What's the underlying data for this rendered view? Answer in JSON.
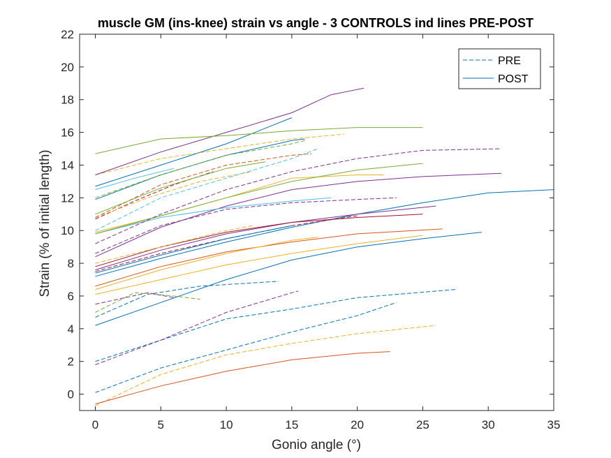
{
  "chart_data": {
    "type": "line",
    "title": "muscle GM (ins-knee) strain vs angle - 3 CONTROLS ind lines PRE-POST",
    "xlabel": "Gonio angle (°)",
    "ylabel": "Strain (% of initial length)",
    "xlim": [
      -1.2,
      35
    ],
    "ylim": [
      -1,
      22
    ],
    "xticks": [
      "0",
      "5",
      "10",
      "15",
      "20",
      "25",
      "30",
      "35"
    ],
    "yticks": [
      "0",
      "2",
      "4",
      "6",
      "8",
      "10",
      "12",
      "14",
      "16",
      "18",
      "20",
      "22"
    ],
    "grid": false,
    "legend": {
      "placement": "top-right",
      "entries": [
        {
          "label": "PRE",
          "style": "dashed",
          "color": "#0072BD"
        },
        {
          "label": "POST",
          "style": "solid",
          "color": "#0072BD"
        }
      ]
    },
    "series": [
      {
        "style": "dashed",
        "color": "#0072BD",
        "points": [
          [
            0,
            0.1
          ],
          [
            5,
            1.6
          ],
          [
            10,
            2.7
          ],
          [
            15,
            3.8
          ],
          [
            20,
            4.8
          ],
          [
            23,
            5.6
          ]
        ]
      },
      {
        "style": "dashed",
        "color": "#EDB120",
        "points": [
          [
            0,
            -0.7
          ],
          [
            5,
            1.2
          ],
          [
            10,
            2.4
          ],
          [
            15,
            3.1
          ],
          [
            20,
            3.7
          ],
          [
            26,
            4.2
          ]
        ]
      },
      {
        "style": "solid",
        "color": "#D95319",
        "points": [
          [
            0,
            -0.6
          ],
          [
            5,
            0.5
          ],
          [
            10,
            1.4
          ],
          [
            15,
            2.1
          ],
          [
            20,
            2.5
          ],
          [
            22.5,
            2.6
          ]
        ]
      },
      {
        "style": "dashed",
        "color": "#0072BD",
        "points": [
          [
            0,
            2.0
          ],
          [
            5,
            3.3
          ],
          [
            10,
            4.6
          ],
          [
            15,
            5.2
          ],
          [
            20,
            5.9
          ],
          [
            27.5,
            6.4
          ]
        ]
      },
      {
        "style": "dashed",
        "color": "#7E2F8E",
        "points": [
          [
            0,
            1.8
          ],
          [
            5,
            3.3
          ],
          [
            10,
            5.0
          ],
          [
            15,
            6.2
          ],
          [
            15.5,
            6.3
          ]
        ]
      },
      {
        "style": "solid",
        "color": "#0072BD",
        "points": [
          [
            0,
            4.2
          ],
          [
            5,
            5.6
          ],
          [
            10,
            7.0
          ],
          [
            15,
            8.2
          ],
          [
            20,
            9.0
          ],
          [
            25,
            9.5
          ],
          [
            29.5,
            9.9
          ]
        ]
      },
      {
        "style": "dashed",
        "color": "#0072BD",
        "points": [
          [
            0,
            4.7
          ],
          [
            4,
            6.1
          ],
          [
            8,
            6.6
          ],
          [
            12,
            6.8
          ],
          [
            14,
            6.9
          ]
        ]
      },
      {
        "style": "dashed",
        "color": "#77AC30",
        "points": [
          [
            0,
            5.0
          ],
          [
            3,
            6.2
          ],
          [
            6,
            6.0
          ],
          [
            8,
            5.8
          ]
        ]
      },
      {
        "style": "dashed",
        "color": "#7E2F8E",
        "points": [
          [
            0,
            5.5
          ],
          [
            4,
            6.2
          ],
          [
            6,
            5.9
          ]
        ]
      },
      {
        "style": "solid",
        "color": "#EDB120",
        "points": [
          [
            0,
            6.1
          ],
          [
            5,
            7.0
          ],
          [
            10,
            7.9
          ],
          [
            15,
            8.6
          ],
          [
            20,
            9.2
          ],
          [
            25,
            9.7
          ]
        ]
      },
      {
        "style": "solid",
        "color": "#D95319",
        "points": [
          [
            0,
            6.6
          ],
          [
            5,
            7.8
          ],
          [
            10,
            8.7
          ],
          [
            15,
            9.3
          ],
          [
            20,
            9.8
          ],
          [
            26.5,
            10.1
          ]
        ]
      },
      {
        "style": "solid",
        "color": "#EDB120",
        "points": [
          [
            0,
            6.4
          ],
          [
            5,
            7.6
          ],
          [
            10,
            8.6
          ],
          [
            15,
            9.4
          ],
          [
            17,
            9.6
          ]
        ]
      },
      {
        "style": "solid",
        "color": "#0072BD",
        "points": [
          [
            0,
            7.2
          ],
          [
            5,
            8.3
          ],
          [
            10,
            9.3
          ],
          [
            15,
            10.2
          ],
          [
            20,
            11.0
          ],
          [
            25,
            11.7
          ],
          [
            30,
            12.3
          ],
          [
            35,
            12.5
          ]
        ]
      },
      {
        "style": "solid",
        "color": "#7E2F8E",
        "points": [
          [
            0,
            7.6
          ],
          [
            5,
            8.8
          ],
          [
            10,
            9.8
          ],
          [
            15,
            10.5
          ],
          [
            20,
            11.0
          ],
          [
            26,
            11.5
          ]
        ]
      },
      {
        "style": "solid",
        "color": "#A2142F",
        "points": [
          [
            0,
            7.8
          ],
          [
            5,
            9.0
          ],
          [
            10,
            9.9
          ],
          [
            15,
            10.5
          ],
          [
            20,
            10.8
          ],
          [
            25,
            11.0
          ]
        ]
      },
      {
        "style": "dashed",
        "color": "#A2142F",
        "points": [
          [
            0,
            7.5
          ],
          [
            5,
            8.6
          ],
          [
            10,
            9.5
          ],
          [
            15,
            10.3
          ],
          [
            20,
            10.9
          ]
        ]
      },
      {
        "style": "solid",
        "color": "#0072BD",
        "points": [
          [
            0,
            7.4
          ],
          [
            5,
            8.5
          ],
          [
            10,
            9.5
          ],
          [
            15,
            10.3
          ]
        ]
      },
      {
        "style": "solid",
        "color": "#7E2F8E",
        "points": [
          [
            0,
            8.4
          ],
          [
            5,
            10.2
          ],
          [
            10,
            11.5
          ],
          [
            15,
            12.5
          ],
          [
            20,
            13.0
          ],
          [
            25,
            13.3
          ],
          [
            31,
            13.5
          ]
        ]
      },
      {
        "style": "dashed",
        "color": "#7E2F8E",
        "points": [
          [
            0,
            8.6
          ],
          [
            5,
            10.3
          ],
          [
            10,
            11.3
          ],
          [
            15,
            11.7
          ],
          [
            20,
            11.9
          ],
          [
            23,
            12.0
          ]
        ]
      },
      {
        "style": "dashed",
        "color": "#EDB120",
        "points": [
          [
            0,
            8.0
          ],
          [
            5,
            9.0
          ],
          [
            10,
            10.0
          ],
          [
            12,
            10.3
          ]
        ]
      },
      {
        "style": "solid",
        "color": "#4DBEEE",
        "points": [
          [
            0,
            9.8
          ],
          [
            5,
            10.8
          ],
          [
            10,
            11.4
          ],
          [
            15,
            11.8
          ],
          [
            18,
            12.0
          ]
        ]
      },
      {
        "style": "solid",
        "color": "#EDB120",
        "points": [
          [
            0,
            9.9
          ],
          [
            5,
            10.9
          ],
          [
            10,
            12.0
          ],
          [
            15,
            13.2
          ],
          [
            20,
            13.4
          ],
          [
            22,
            13.4
          ]
        ]
      },
      {
        "style": "solid",
        "color": "#77AC30",
        "points": [
          [
            0,
            9.8
          ],
          [
            5,
            10.9
          ],
          [
            10,
            12.0
          ],
          [
            15,
            13.0
          ],
          [
            20,
            13.7
          ],
          [
            25,
            14.1
          ]
        ]
      },
      {
        "style": "dashed",
        "color": "#7E2F8E",
        "points": [
          [
            0,
            9.2
          ],
          [
            5,
            11.0
          ],
          [
            10,
            12.5
          ],
          [
            15,
            13.6
          ],
          [
            20,
            14.4
          ],
          [
            25,
            14.9
          ],
          [
            31,
            15.0
          ]
        ]
      },
      {
        "style": "dashed",
        "color": "#A2142F",
        "points": [
          [
            0,
            10.7
          ],
          [
            3,
            11.8
          ],
          [
            6,
            12.8
          ],
          [
            9,
            13.6
          ]
        ]
      },
      {
        "style": "dashed",
        "color": "#EDB120",
        "points": [
          [
            0,
            10.8
          ],
          [
            4,
            12.0
          ],
          [
            8,
            13.0
          ],
          [
            12,
            13.6
          ]
        ]
      },
      {
        "style": "dashed",
        "color": "#D95319",
        "points": [
          [
            0,
            10.8
          ],
          [
            5,
            12.8
          ],
          [
            10,
            14.0
          ],
          [
            15,
            14.6
          ],
          [
            16.5,
            14.7
          ]
        ]
      },
      {
        "style": "solid",
        "color": "#77AC30",
        "points": [
          [
            0,
            11.0
          ],
          [
            5,
            12.6
          ],
          [
            10,
            13.8
          ],
          [
            13,
            14.2
          ]
        ]
      },
      {
        "style": "dashed",
        "color": "#4DBEEE",
        "points": [
          [
            0,
            10.0
          ],
          [
            5,
            12.0
          ],
          [
            10,
            13.2
          ],
          [
            15,
            14.4
          ],
          [
            17,
            15.0
          ]
        ]
      },
      {
        "style": "solid",
        "color": "#0072BD",
        "points": [
          [
            0,
            11.9
          ],
          [
            5,
            13.4
          ],
          [
            10,
            14.6
          ],
          [
            15,
            15.5
          ],
          [
            16,
            15.6
          ]
        ]
      },
      {
        "style": "dashed",
        "color": "#77AC30",
        "points": [
          [
            0,
            12.0
          ],
          [
            5,
            13.4
          ],
          [
            10,
            14.6
          ],
          [
            15,
            15.3
          ],
          [
            16,
            15.5
          ]
        ]
      },
      {
        "style": "solid",
        "color": "#4DBEEE",
        "points": [
          [
            0,
            12.5
          ],
          [
            3,
            13.2
          ],
          [
            6,
            13.8
          ]
        ]
      },
      {
        "style": "solid",
        "color": "#0072BD",
        "points": [
          [
            0,
            12.7
          ],
          [
            5,
            14.0
          ],
          [
            10,
            15.3
          ],
          [
            15,
            16.9
          ]
        ]
      },
      {
        "style": "dashed",
        "color": "#EDB120",
        "points": [
          [
            0,
            13.4
          ],
          [
            5,
            14.4
          ],
          [
            10,
            15.0
          ],
          [
            15,
            15.6
          ],
          [
            19,
            15.9
          ]
        ]
      },
      {
        "style": "solid",
        "color": "#7E2F8E",
        "points": [
          [
            0,
            13.4
          ],
          [
            5,
            14.8
          ],
          [
            10,
            16.0
          ],
          [
            15,
            17.2
          ],
          [
            18,
            18.3
          ],
          [
            20.5,
            18.7
          ]
        ]
      },
      {
        "style": "solid",
        "color": "#77AC30",
        "points": [
          [
            0,
            14.7
          ],
          [
            5,
            15.6
          ],
          [
            10,
            15.8
          ],
          [
            15,
            16.1
          ],
          [
            20,
            16.3
          ],
          [
            25,
            16.3
          ]
        ]
      }
    ]
  }
}
